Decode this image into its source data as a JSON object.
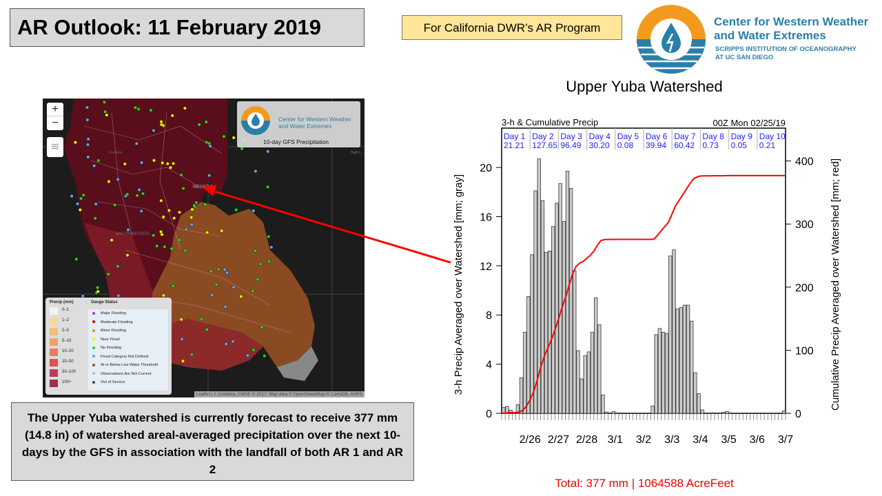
{
  "header": {
    "title": "AR Outlook: 11 February 2019",
    "program": "For California DWR’s AR Program",
    "org_line1": "Center for Western Weather",
    "org_line2": "and Water Extremes",
    "org_sub1": "SCRIPPS INSTITUTION OF OCEANOGRAPHY",
    "org_sub2": "AT UC SAN DIEGO"
  },
  "map": {
    "zoom_in": "+",
    "zoom_out": "−",
    "logo_line1": "Center for Western Weather",
    "logo_line2": "and Water Extremes",
    "product": "10-day GFS Precipitation",
    "place_labels": [
      "Eureka",
      "NEVADA",
      "SAN FRANCISCO",
      "Salt L"
    ],
    "attribution": "Leaflet | J. Cordeira, CW3E © 2017, Map data © OpenStreetMap © CartoDB, AHPS",
    "legend": {
      "precip_title": "Precip (mm)",
      "precip_bins": [
        {
          "label": "0–1",
          "color": "#f2f2f2"
        },
        {
          "label": "1–2",
          "color": "#f5d99a"
        },
        {
          "label": "2–5",
          "color": "#f3bd7a"
        },
        {
          "label": "5–10",
          "color": "#f1a06c"
        },
        {
          "label": "10–20",
          "color": "#ec7a60"
        },
        {
          "label": "20–50",
          "color": "#dd5257"
        },
        {
          "label": "50–100",
          "color": "#c43a55"
        },
        {
          "label": "100+",
          "color": "#973250"
        }
      ],
      "gauge_title": "Gauge Status",
      "gauge_items": [
        {
          "label": "Major Flooding",
          "color": "#b030d0"
        },
        {
          "label": "Moderate Flooding",
          "color": "#e00000"
        },
        {
          "label": "Minor Flooding",
          "color": "#f08c00"
        },
        {
          "label": "Near Flood",
          "color": "#f0f000"
        },
        {
          "label": "No Flooding",
          "color": "#30d020"
        },
        {
          "label": "Flood Category Not Defined",
          "color": "#5aa8e8"
        },
        {
          "label": "At or Below Low Water Threshold",
          "color": "#8a5a20"
        },
        {
          "label": "Observations Are Not Current",
          "color": "#bbbbbb"
        },
        {
          "label": "Out of Service",
          "color": "#444444"
        }
      ]
    }
  },
  "summary": "The Upper Yuba watershed is currently forecast to receive 377 mm (14.8 in) of watershed areal-averaged precipitation over the next 10-days by the GFS in association with the landfall of both AR 1 and AR 2",
  "chart_data": {
    "type": "bar",
    "title": "Upper Yuba Watershed",
    "subtitle_left": "3-h & Cumulative Precip",
    "subtitle_right": "00Z Mon 02/25/19",
    "ylabel": "3-h Precip Averaged over Watershed [mm; gray]",
    "y2label": "Cumulative Precip Averaged over Watershed [mm; red]",
    "ylim": [
      0,
      23.2
    ],
    "y2lim": [
      0,
      452
    ],
    "yticks": [
      0,
      4,
      8,
      12,
      16,
      20
    ],
    "y2ticks": [
      0,
      100,
      200,
      300,
      400
    ],
    "xtick_labels": [
      "2/26",
      "2/27",
      "2/28",
      "3/1",
      "3/2",
      "3/3",
      "3/4",
      "3/5",
      "3/6",
      "3/7"
    ],
    "days": [
      {
        "label": "Day 1",
        "total": "21.21"
      },
      {
        "label": "Day 2",
        "total": "127.65"
      },
      {
        "label": "Day 3",
        "total": "96.49"
      },
      {
        "label": "Day 4",
        "total": "30.20"
      },
      {
        "label": "Day 5",
        "total": "0.08"
      },
      {
        "label": "Day 6",
        "total": "39.94"
      },
      {
        "label": "Day 7",
        "total": "60.42"
      },
      {
        "label": "Day 8",
        "total": "0.73"
      },
      {
        "label": "Day 9",
        "total": "0.05"
      },
      {
        "label": "Day 10",
        "total": "0.21"
      }
    ],
    "bars_3h_mm": [
      0.47,
      0.56,
      0.26,
      0.05,
      0.7,
      2.9,
      6.6,
      9.5,
      12.9,
      18.1,
      20.7,
      17.3,
      13.1,
      13.2,
      15.2,
      17.1,
      18.7,
      15.6,
      19.7,
      18.3,
      11.6,
      5.1,
      2.8,
      4.7,
      5.0,
      6.6,
      9.4,
      7.2,
      1.5,
      0.1,
      0.04,
      0.15,
      0.04,
      0,
      0,
      0,
      0,
      0,
      0,
      0,
      0,
      0,
      0.6,
      6.4,
      6.9,
      6.6,
      6.5,
      12.8,
      13.3,
      8.5,
      8.6,
      8.8,
      8.8,
      7.5,
      3.3,
      1.6,
      0.28,
      0.04,
      0,
      0.05,
      0,
      0.04,
      0.1,
      0.15,
      0.04,
      0,
      0,
      0,
      0,
      0,
      0,
      0,
      0,
      0,
      0,
      0,
      0,
      0,
      0,
      0.2
    ],
    "cumulative_total_mm": 377,
    "bar_color": "#cccccc",
    "line_color": "#ff0000",
    "total_text": "Total: 377 mm | 1064588 AcreFeet"
  }
}
